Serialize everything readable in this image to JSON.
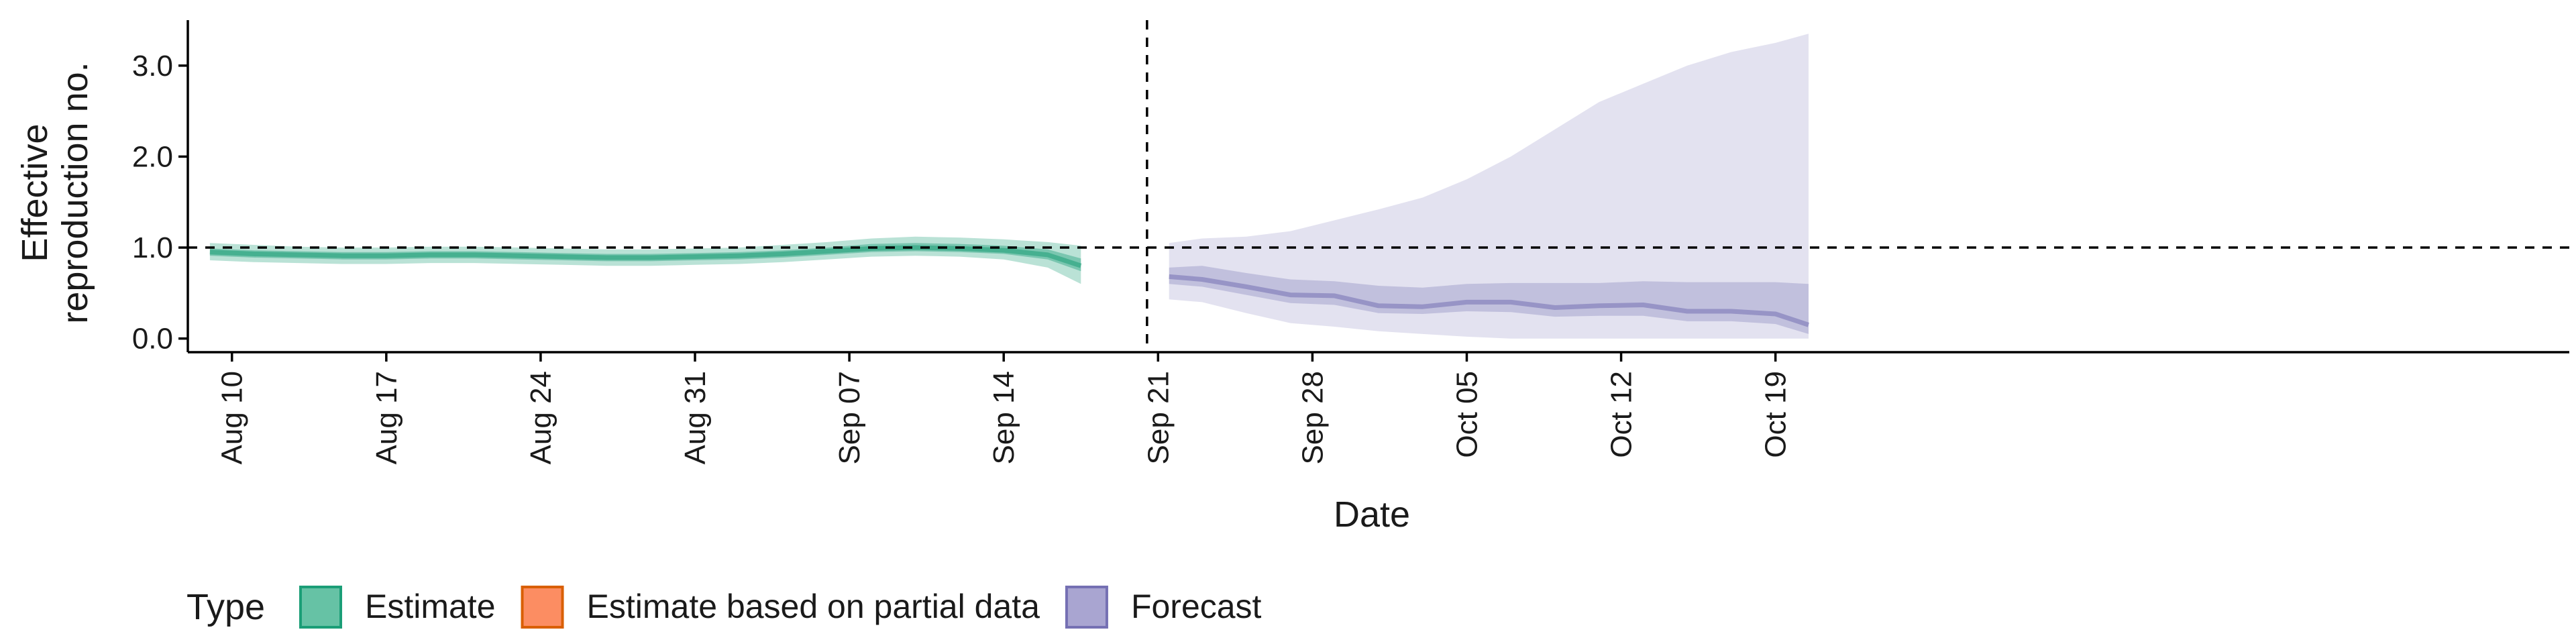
{
  "chart_data": {
    "type": "area",
    "xlabel": "Date",
    "ylabel": [
      "Effective",
      "reproduction no."
    ],
    "ylim": [
      -0.15,
      3.5
    ],
    "yticks": [
      0.0,
      1.0,
      2.0,
      3.0
    ],
    "ytick_labels": [
      "0.0",
      "1.0",
      "2.0",
      "3.0"
    ],
    "reference_line_y": 1.0,
    "forecast_start_line_x": 41.5,
    "xlim": [
      -2,
      106
    ],
    "xticks": [
      {
        "x": 0,
        "label": "Aug 10"
      },
      {
        "x": 7,
        "label": "Aug 17"
      },
      {
        "x": 14,
        "label": "Aug 24"
      },
      {
        "x": 21,
        "label": "Aug 31"
      },
      {
        "x": 28,
        "label": "Sep 07"
      },
      {
        "x": 35,
        "label": "Sep 14"
      },
      {
        "x": 42,
        "label": "Sep 21"
      },
      {
        "x": 49,
        "label": "Sep 28"
      },
      {
        "x": 56,
        "label": "Oct 05"
      },
      {
        "x": 63,
        "label": "Oct 12"
      },
      {
        "x": 70,
        "label": "Oct 19"
      }
    ],
    "x_unit_note": "x = days since Aug 10",
    "legend": {
      "title": "Type",
      "position": "bottom",
      "entries": [
        {
          "label": "Estimate",
          "fill": "#66c2a5",
          "stroke": "#1b9e77"
        },
        {
          "label": "Estimate based on partial data",
          "fill": "#fc8d62",
          "stroke": "#d95f02"
        },
        {
          "label": "Forecast",
          "fill": "#a9a5d1",
          "stroke": "#7570b3"
        }
      ]
    },
    "series": [
      {
        "name": "Estimate",
        "color": "#1b9e77",
        "x": [
          -1,
          1,
          3,
          5,
          7,
          9,
          11,
          13,
          15,
          17,
          19,
          21,
          23,
          25,
          27,
          29,
          31,
          33,
          35,
          37,
          38.5
        ],
        "median": [
          0.95,
          0.93,
          0.92,
          0.91,
          0.91,
          0.92,
          0.92,
          0.91,
          0.9,
          0.89,
          0.89,
          0.9,
          0.91,
          0.93,
          0.96,
          0.99,
          1.0,
          0.99,
          0.97,
          0.92,
          0.8
        ],
        "band50_lo": [
          0.91,
          0.89,
          0.88,
          0.87,
          0.87,
          0.88,
          0.88,
          0.87,
          0.86,
          0.85,
          0.85,
          0.86,
          0.87,
          0.89,
          0.92,
          0.95,
          0.96,
          0.95,
          0.93,
          0.87,
          0.74
        ],
        "band50_hi": [
          0.99,
          0.97,
          0.96,
          0.95,
          0.95,
          0.96,
          0.96,
          0.95,
          0.94,
          0.93,
          0.93,
          0.94,
          0.95,
          0.97,
          1.0,
          1.04,
          1.05,
          1.04,
          1.02,
          0.98,
          0.88
        ],
        "band90_lo": [
          0.86,
          0.84,
          0.83,
          0.82,
          0.82,
          0.83,
          0.83,
          0.82,
          0.81,
          0.8,
          0.8,
          0.81,
          0.82,
          0.84,
          0.87,
          0.9,
          0.91,
          0.9,
          0.87,
          0.78,
          0.6
        ],
        "band90_hi": [
          1.05,
          1.03,
          1.01,
          1.0,
          1.0,
          1.01,
          1.01,
          1.0,
          0.99,
          0.98,
          0.98,
          0.99,
          1.0,
          1.03,
          1.06,
          1.1,
          1.12,
          1.11,
          1.09,
          1.06,
          1.02
        ]
      },
      {
        "name": "Forecast",
        "color": "#7570b3",
        "x": [
          42.5,
          44,
          46,
          48,
          50,
          52,
          54,
          56,
          58,
          60,
          62,
          64,
          66,
          68,
          70,
          71.5
        ],
        "median": [
          0.68,
          0.65,
          0.57,
          0.48,
          0.47,
          0.36,
          0.35,
          0.4,
          0.4,
          0.34,
          0.36,
          0.37,
          0.3,
          0.3,
          0.27,
          0.15
        ],
        "band50_lo": [
          0.6,
          0.57,
          0.48,
          0.39,
          0.37,
          0.28,
          0.27,
          0.3,
          0.29,
          0.24,
          0.25,
          0.25,
          0.19,
          0.19,
          0.16,
          0.05
        ],
        "band50_hi": [
          0.78,
          0.8,
          0.72,
          0.65,
          0.63,
          0.58,
          0.56,
          0.6,
          0.61,
          0.61,
          0.61,
          0.63,
          0.62,
          0.62,
          0.62,
          0.6
        ],
        "band90_lo": [
          0.43,
          0.4,
          0.28,
          0.17,
          0.13,
          0.08,
          0.05,
          0.02,
          0.0,
          0.0,
          0.0,
          0.0,
          0.0,
          0.0,
          0.0,
          0.0
        ],
        "band90_hi": [
          1.05,
          1.1,
          1.12,
          1.18,
          1.3,
          1.42,
          1.55,
          1.75,
          2.0,
          2.3,
          2.6,
          2.8,
          3.0,
          3.15,
          3.25,
          3.35
        ]
      }
    ]
  }
}
